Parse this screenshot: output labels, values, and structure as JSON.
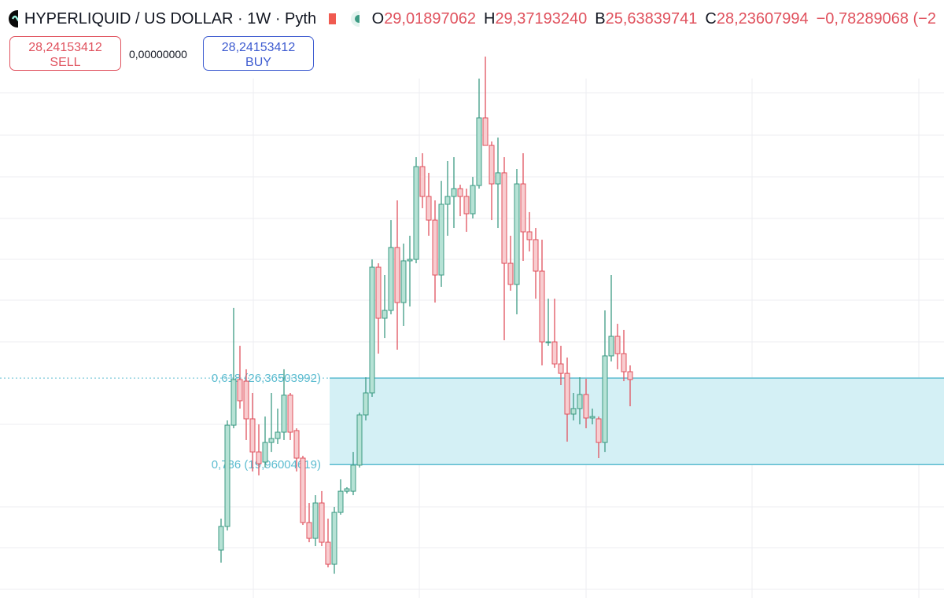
{
  "header": {
    "title": "HYPERLIQUID / US DOLLAR · 1W · Pyth",
    "o_label": "O",
    "o": "29,01897062",
    "h_label": "H",
    "h": "29,37193240",
    "b_label": "B",
    "b": "25,63839741",
    "c_label": "C",
    "c": "28,23607994",
    "change": "−0,78289068 (−2"
  },
  "trade": {
    "sell_price": "28,24153412",
    "sell_label": "SELL",
    "spread": "0,00000000",
    "buy_price": "28,24153412",
    "buy_label": "BUY"
  },
  "chart_data": {
    "type": "candlestick",
    "ylim": [
      10.08,
      54.37
    ],
    "up_color": "#3d9b84",
    "up_fill": "#b6e2d5",
    "down_color": "#e0525e",
    "down_fill": "#f8cdd0",
    "open": [
      13.63,
      15.38,
      22.88,
      26.26,
      26.14,
      23.35,
      20.9,
      20.15,
      21.6,
      21.89,
      22.36,
      25.1,
      22.48,
      20.44,
      15.67,
      14.5,
      17.12,
      14.21,
      12.58,
      16.42,
      17.99,
      17.99,
      19.92,
      23.64,
      25.27,
      34.58,
      30.8,
      31.38,
      36.04,
      31.96,
      35.05,
      35.16,
      42.03,
      39.82,
      38.07,
      34.0,
      39.24,
      39.82,
      40.4,
      39.82,
      38.54,
      40.63,
      45.64,
      43.6,
      40.75,
      41.57,
      34.87,
      33.3,
      40.75,
      37.2,
      36.62,
      34.29,
      29.05,
      29.05,
      27.42,
      26.72,
      23.7,
      24.11,
      25.15,
      23.41,
      23.35,
      21.6,
      28.01,
      29.46,
      28.18,
      26.84
    ],
    "high": [
      15.96,
      23.23,
      31.56,
      28.76,
      27.02,
      25.27,
      22.94,
      23.52,
      25.27,
      24.11,
      27.02,
      25.27,
      22.65,
      20.61,
      17.12,
      17.7,
      18.0,
      15.96,
      16.83,
      18.87,
      18.29,
      20.9,
      23.81,
      26.43,
      35.16,
      34.87,
      34.0,
      38.07,
      39.53,
      36.33,
      36.91,
      42.73,
      43.02,
      41.57,
      39.53,
      40.98,
      42.44,
      42.73,
      40.69,
      40.4,
      41.27,
      48.55,
      50.18,
      43.89,
      44.18,
      42.73,
      36.91,
      41.86,
      43.02,
      38.66,
      37.49,
      36.62,
      32.25,
      32.25,
      28.76,
      27.89,
      25.27,
      26.43,
      26.32,
      24.11,
      23.52,
      31.38,
      34.0,
      30.39,
      29.93,
      27.31
    ],
    "low": [
      12.7,
      15.08,
      22.65,
      24.11,
      21.78,
      19.45,
      19.16,
      19.74,
      20.9,
      21.49,
      21.78,
      21.78,
      19.45,
      15.49,
      14.21,
      13.92,
      13.92,
      12.35,
      11.88,
      16.25,
      17.82,
      17.7,
      19.74,
      23.23,
      24.98,
      28.18,
      29.34,
      31.09,
      28.47,
      30.22,
      31.67,
      34.87,
      38.95,
      36.91,
      31.96,
      33.13,
      36.91,
      37.49,
      38.36,
      37.2,
      38.19,
      40.4,
      43.6,
      38.07,
      37.49,
      29.17,
      32.84,
      31.09,
      35.05,
      35.75,
      32.25,
      27.31,
      28.76,
      27.13,
      25.85,
      21.66,
      23.23,
      22.94,
      22.65,
      22.94,
      20.44,
      20.9,
      27.6,
      27.02,
      26.14,
      24.28
    ],
    "close": [
      15.38,
      22.88,
      26.26,
      24.69,
      23.35,
      20.9,
      20.03,
      21.6,
      21.89,
      22.36,
      25.1,
      22.36,
      20.44,
      15.67,
      14.5,
      17.12,
      14.21,
      12.58,
      16.42,
      17.99,
      18.17,
      19.92,
      23.64,
      25.27,
      34.58,
      30.8,
      31.38,
      36.04,
      31.96,
      35.05,
      35.16,
      42.03,
      39.82,
      38.07,
      34.0,
      39.24,
      39.82,
      40.4,
      39.82,
      38.54,
      40.63,
      45.64,
      43.6,
      40.75,
      41.57,
      34.87,
      33.3,
      40.75,
      37.2,
      36.62,
      34.29,
      29.05,
      29.05,
      27.42,
      26.72,
      23.7,
      24.11,
      25.15,
      23.41,
      23.52,
      21.6,
      28.01,
      29.46,
      28.18,
      26.84,
      26.26
    ],
    "fib_levels": [
      {
        "value": 26.36503992,
        "label": "0,618 (26,36503992)"
      },
      {
        "value": 19.96004619,
        "label": "0,786 (19,96004619)"
      }
    ],
    "fib_color": "#5cbcd0",
    "fib_fill": "#d4f0f5"
  }
}
